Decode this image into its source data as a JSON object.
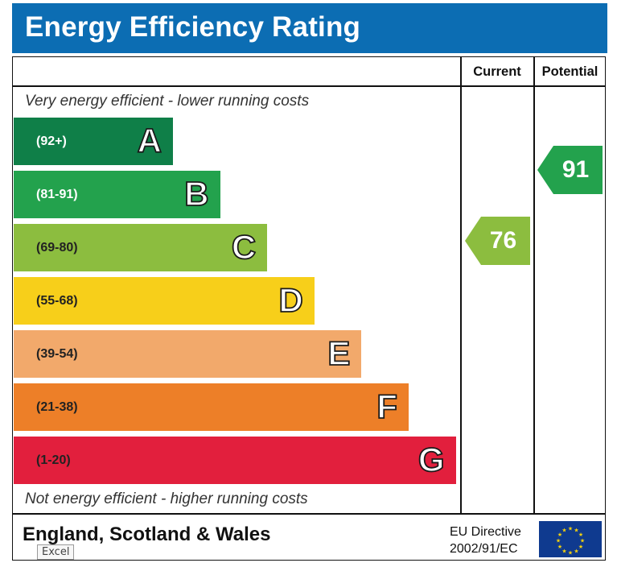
{
  "chart_data": {
    "type": "bar",
    "title": "Energy Efficiency Rating",
    "columns": [
      "Current",
      "Potential"
    ],
    "top_caption": "Very energy efficient - lower running costs",
    "bottom_caption": "Not energy efficient - higher running costs",
    "bands": [
      {
        "letter": "A",
        "range": "(92+)",
        "color": "#0f7f48",
        "text_color": "#ffffff"
      },
      {
        "letter": "B",
        "range": "(81-91)",
        "color": "#23a24d",
        "text_color": "#ffffff"
      },
      {
        "letter": "C",
        "range": "(69-80)",
        "color": "#8cbd3f",
        "text_color": "#222222"
      },
      {
        "letter": "D",
        "range": "(55-68)",
        "color": "#f7cf1a",
        "text_color": "#222222"
      },
      {
        "letter": "E",
        "range": "(39-54)",
        "color": "#f2a96b",
        "text_color": "#222222"
      },
      {
        "letter": "F",
        "range": "(21-38)",
        "color": "#ed7f28",
        "text_color": "#222222"
      },
      {
        "letter": "G",
        "range": "(1-20)",
        "color": "#e21f3d",
        "text_color": "#222222"
      }
    ],
    "current": {
      "value": 76,
      "label": "76",
      "band": "C",
      "color": "#8cbd3f"
    },
    "potential": {
      "value": 91,
      "label": "91",
      "band": "B",
      "color": "#23a24d"
    }
  },
  "footer": {
    "country": "England, Scotland & Wales",
    "directive_line1": "EU Directive",
    "directive_line2": "2002/91/EC"
  },
  "tooltip": {
    "label": "Excel"
  },
  "colors": {
    "header": "#0c6db3",
    "flag": "#0f3a8f",
    "flag_stars": "#f5d20c"
  }
}
